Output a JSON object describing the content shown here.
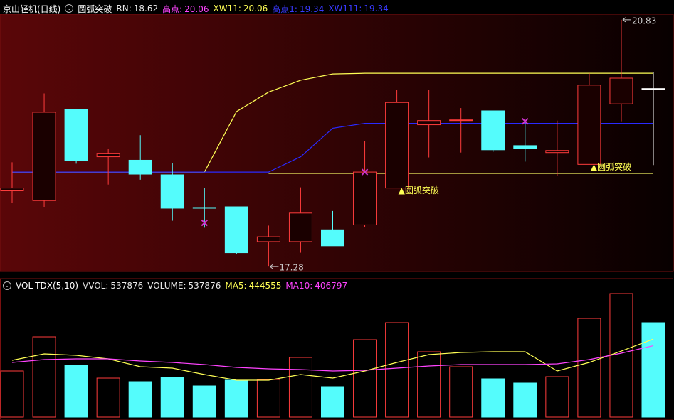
{
  "chart_data": [
    {
      "type": "candlestick",
      "title": "京山轻机(日线)",
      "subtitle": "圆弧突破",
      "legend_items": [
        {
          "name": "RN:",
          "value": 18.62,
          "color": "#e8e8e8"
        },
        {
          "name": "高点:",
          "value": 20.06,
          "color": "#ff44ff"
        },
        {
          "name": "XW11:",
          "value": 20.06,
          "color": "#ffff55"
        },
        {
          "name": "高点1:",
          "value": 19.34,
          "color": "#3a3aff"
        },
        {
          "name": "XW111:",
          "value": 19.34,
          "color": "#3a3aff"
        }
      ],
      "open": [
        18.37,
        18.23,
        19.54,
        18.86,
        18.81,
        18.6,
        18.13,
        18.14,
        17.64,
        17.64,
        17.81,
        17.88,
        18.41,
        19.32,
        19.38,
        19.52,
        19.02,
        18.92,
        18.75,
        19.62,
        19.84
      ],
      "high": [
        18.78,
        19.77,
        19.54,
        18.97,
        19.17,
        18.77,
        18.41,
        18.14,
        17.87,
        18.42,
        18.08,
        19.09,
        19.82,
        19.82,
        19.56,
        19.52,
        19.38,
        19.38,
        20.06,
        20.83,
        20.08
      ],
      "low": [
        18.2,
        18.14,
        18.76,
        18.46,
        18.53,
        17.94,
        17.84,
        17.46,
        17.28,
        17.48,
        17.58,
        17.85,
        18.41,
        18.85,
        18.92,
        18.93,
        18.79,
        18.58,
        18.75,
        19.37,
        18.74
      ],
      "close": [
        18.41,
        19.5,
        18.8,
        18.91,
        18.61,
        18.12,
        18.13,
        17.48,
        17.71,
        18.05,
        17.58,
        18.64,
        19.64,
        19.38,
        19.39,
        18.96,
        18.98,
        18.95,
        19.89,
        19.99,
        19.84
      ],
      "colors": [
        "#ff3c3c",
        "#ff3c3c",
        "#54fcfc",
        "#ff3c3c",
        "#54fcfc",
        "#54fcfc",
        "#54fcfc",
        "#54fcfc",
        "#ff3c3c",
        "#ff3c3c",
        "#54fcfc",
        "#ff3c3c",
        "#ff3c3c",
        "#ff3c3c",
        "#ff3c3c",
        "#54fcfc",
        "#54fcfc",
        "#ff3c3c",
        "#ff3c3c",
        "#ff3c3c",
        "#ffffff"
      ],
      "ylim": [
        17.21,
        20.91
      ],
      "lines": [
        {
          "color": "#ffff55",
          "values": [
            18.64,
            18.64,
            18.64,
            18.64,
            18.64,
            18.64,
            18.64,
            19.51,
            19.79,
            19.96,
            20.05,
            20.06,
            20.06,
            20.06,
            20.06,
            20.06,
            20.06,
            20.06,
            20.06,
            20.06,
            20.06
          ]
        },
        {
          "color": "#f0f060",
          "values": [
            null,
            null,
            null,
            null,
            null,
            null,
            null,
            null,
            18.62,
            18.62,
            18.62,
            18.62,
            18.62,
            18.62,
            18.62,
            18.62,
            18.62,
            18.62,
            18.62,
            18.62,
            18.62
          ]
        },
        {
          "color": "#2a2aff",
          "values": [
            18.64,
            18.64,
            18.64,
            18.64,
            18.64,
            18.64,
            18.64,
            18.64,
            18.64,
            18.86,
            19.27,
            19.34,
            19.34,
            19.34,
            19.34,
            19.34,
            19.34,
            19.34,
            19.34,
            19.34,
            19.34
          ]
        }
      ],
      "cross_marks": {
        "color": "#cc33cc",
        "values": [
          null,
          null,
          null,
          null,
          null,
          null,
          17.91,
          null,
          null,
          null,
          null,
          18.64,
          null,
          null,
          null,
          null,
          19.37,
          null,
          null,
          null,
          null
        ]
      },
      "signals": {
        "color": "#ffff55",
        "labels": [
          null,
          null,
          null,
          null,
          null,
          null,
          null,
          null,
          null,
          null,
          null,
          null,
          "▲圆弧突破",
          null,
          null,
          null,
          null,
          null,
          "▲圆弧突破",
          null,
          null
        ]
      }
    },
    {
      "type": "bar",
      "title": "VOL-TDX(5,10)",
      "legend_items": [
        {
          "name": "VVOL:",
          "value": 537876,
          "color": "#e8e8e8"
        },
        {
          "name": "VOLUME:",
          "value": 537876,
          "color": "#e8e8e8"
        },
        {
          "name": "MA5:",
          "value": 444555,
          "color": "#ffff55"
        },
        {
          "name": "MA10:",
          "value": 406797,
          "color": "#ff44ff"
        }
      ],
      "values": [
        262900,
        457000,
        295200,
        222400,
        202200,
        226500,
        177900,
        210300,
        214300,
        339700,
        173900,
        440800,
        537900,
        372000,
        287100,
        218400,
        194100,
        230500,
        562100,
        703700,
        537876
      ],
      "colors": [
        "#ff3c3c",
        "#ff3c3c",
        "#54fcfc",
        "#ff3c3c",
        "#54fcfc",
        "#54fcfc",
        "#54fcfc",
        "#54fcfc",
        "#ff3c3c",
        "#ff3c3c",
        "#54fcfc",
        "#ff3c3c",
        "#ff3c3c",
        "#ff3c3c",
        "#ff3c3c",
        "#54fcfc",
        "#54fcfc",
        "#ff3c3c",
        "#ff3c3c",
        "#ff3c3c",
        "#54fcfc"
      ],
      "series": [
        {
          "color": "#ffff55",
          "values": [
            323500,
            359900,
            351800,
            331600,
            287100,
            279000,
            242600,
            210300,
            210300,
            242600,
            222400,
            262900,
            311400,
            355900,
            368000,
            372000,
            372000,
            262900,
            311400,
            376100,
            444555
          ]
        },
        {
          "color": "#ff44ff",
          "values": [
            311400,
            327600,
            331600,
            331600,
            319500,
            311400,
            299300,
            283100,
            275000,
            270900,
            262900,
            266900,
            279000,
            291200,
            299300,
            299300,
            299300,
            303300,
            327600,
            364000,
            406797
          ]
        }
      ],
      "ylim": [
        0,
        724000
      ]
    }
  ]
}
